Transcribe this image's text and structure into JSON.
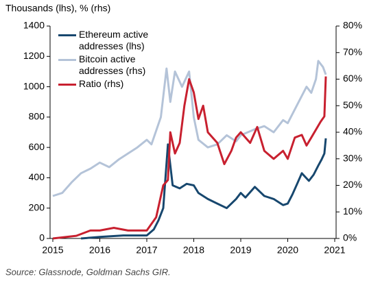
{
  "chart_data": {
    "type": "line",
    "title": "Thousands (lhs), % (rhs)",
    "source": "Source: Glassnode, Goldman Sachs GIR.",
    "xlim": [
      2015,
      2021
    ],
    "xticks": [
      2015,
      2016,
      2017,
      2018,
      2019,
      2020,
      2021
    ],
    "ylim": [
      0,
      1400
    ],
    "yticks": [
      0,
      200,
      400,
      600,
      800,
      1000,
      1200,
      1400
    ],
    "y2lim": [
      0,
      80
    ],
    "y2ticks": [
      {
        "value": 0,
        "label": "0%"
      },
      {
        "value": 10,
        "label": "10%"
      },
      {
        "value": 20,
        "label": "20%"
      },
      {
        "value": 30,
        "label": "30%"
      },
      {
        "value": 40,
        "label": "40%"
      },
      {
        "value": 50,
        "label": "50%"
      },
      {
        "value": 60,
        "label": "60%"
      },
      {
        "value": 70,
        "label": "70%"
      },
      {
        "value": 80,
        "label": "80%"
      }
    ],
    "legend": "upper left",
    "series": [
      {
        "name": "Ethereum active addresses (lhs)",
        "color": "#17476e",
        "x": [
          2015.6,
          2016.0,
          2016.5,
          2017.0,
          2017.15,
          2017.25,
          2017.35,
          2017.45,
          2017.55,
          2017.7,
          2017.85,
          2018.0,
          2018.1,
          2018.3,
          2018.5,
          2018.7,
          2018.9,
          2019.0,
          2019.1,
          2019.3,
          2019.5,
          2019.7,
          2019.9,
          2020.0,
          2020.1,
          2020.2,
          2020.3,
          2020.45,
          2020.55,
          2020.65,
          2020.72,
          2020.78,
          2020.81
        ],
        "values": [
          0,
          10,
          20,
          20,
          60,
          120,
          200,
          620,
          350,
          330,
          360,
          350,
          300,
          260,
          230,
          200,
          260,
          300,
          270,
          340,
          280,
          260,
          220,
          230,
          290,
          360,
          430,
          380,
          420,
          480,
          520,
          560,
          660
        ]
      },
      {
        "name": "Bitcoin active addresses (rhs)",
        "color": "#b4c3d8",
        "x": [
          2015.0,
          2015.2,
          2015.4,
          2015.6,
          2015.8,
          2016.0,
          2016.2,
          2016.4,
          2016.6,
          2016.8,
          2017.0,
          2017.1,
          2017.3,
          2017.42,
          2017.5,
          2017.6,
          2017.75,
          2017.9,
          2018.0,
          2018.1,
          2018.3,
          2018.5,
          2018.7,
          2018.9,
          2019.0,
          2019.3,
          2019.5,
          2019.7,
          2019.9,
          2020.0,
          2020.2,
          2020.4,
          2020.5,
          2020.6,
          2020.65,
          2020.75,
          2020.81
        ],
        "values": [
          280,
          300,
          370,
          430,
          460,
          500,
          470,
          520,
          560,
          600,
          650,
          620,
          800,
          1120,
          900,
          1100,
          1000,
          1100,
          800,
          650,
          600,
          620,
          680,
          640,
          680,
          720,
          740,
          700,
          780,
          760,
          880,
          1000,
          960,
          1050,
          1170,
          1130,
          1080
        ]
      },
      {
        "name": "Ratio (rhs)",
        "color": "#c8202f",
        "axis": "y2",
        "x": [
          2015.0,
          2015.5,
          2015.8,
          2016.0,
          2016.3,
          2016.6,
          2017.0,
          2017.2,
          2017.35,
          2017.45,
          2017.5,
          2017.6,
          2017.7,
          2017.8,
          2017.9,
          2018.0,
          2018.1,
          2018.2,
          2018.3,
          2018.5,
          2018.65,
          2018.8,
          2018.9,
          2019.0,
          2019.2,
          2019.35,
          2019.5,
          2019.7,
          2019.9,
          2020.0,
          2020.15,
          2020.3,
          2020.4,
          2020.5,
          2020.7,
          2020.78,
          2020.81
        ],
        "values": [
          0,
          1,
          3,
          3,
          4,
          3,
          3,
          8,
          20,
          22,
          40,
          32,
          36,
          50,
          60,
          55,
          45,
          50,
          40,
          36,
          28,
          33,
          38,
          40,
          36,
          42,
          33,
          30,
          33,
          30,
          38,
          39,
          35,
          38,
          44,
          46,
          61
        ]
      }
    ]
  }
}
